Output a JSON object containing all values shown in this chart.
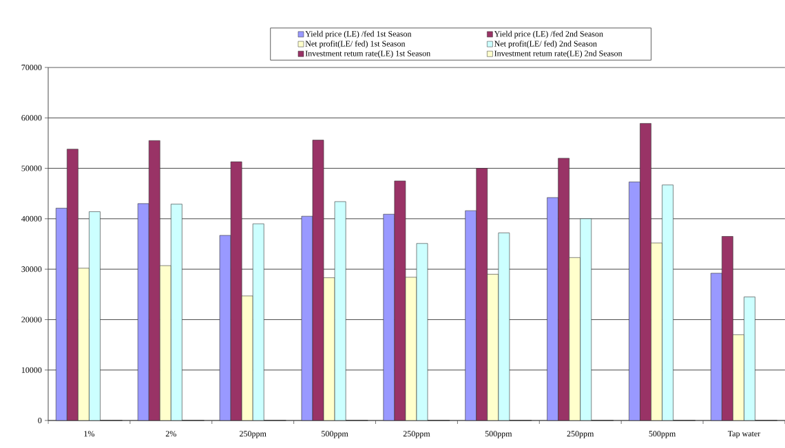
{
  "chart_data": {
    "type": "bar",
    "categories": [
      "1%",
      "2%",
      "250ppm",
      "500ppm",
      "250ppm",
      "500ppm",
      "250ppm",
      "500ppm",
      "Tap water"
    ],
    "series": [
      {
        "name": "Yield price (LE) /fed 1st Season",
        "color": "#9999ff",
        "values": [
          42100,
          43000,
          36700,
          40500,
          40900,
          41600,
          44200,
          47300,
          29200
        ]
      },
      {
        "name": "Yield price (LE) /fed 2nd Season",
        "color": "#993366",
        "values": [
          53800,
          55500,
          51300,
          55600,
          47500,
          50000,
          52000,
          58900,
          36500
        ]
      },
      {
        "name": "Net profit(LE/ fed) 1st Season",
        "color": "#ffffcc",
        "values": [
          30200,
          30700,
          24700,
          28300,
          28400,
          29000,
          32300,
          35200,
          17000
        ]
      },
      {
        "name": "Net profit(LE/ fed) 2nd Season",
        "color": "#ccffff",
        "values": [
          41400,
          42900,
          39000,
          43400,
          35100,
          37200,
          40000,
          46700,
          24500
        ]
      },
      {
        "name": "Investment retum rate(LE)  1st Season",
        "color": "#993366",
        "values": [
          0,
          0,
          0,
          0,
          0,
          0,
          0,
          0,
          0
        ]
      },
      {
        "name": "Investment retum rate(LE)  2nd Season",
        "color": "#ffffcc",
        "values": [
          0,
          0,
          0,
          0,
          0,
          0,
          0,
          0,
          0
        ]
      }
    ],
    "ylim": [
      0,
      70000
    ],
    "yticks": [
      0,
      10000,
      20000,
      30000,
      40000,
      50000,
      60000,
      70000
    ],
    "grid": "y",
    "legend": "top"
  }
}
